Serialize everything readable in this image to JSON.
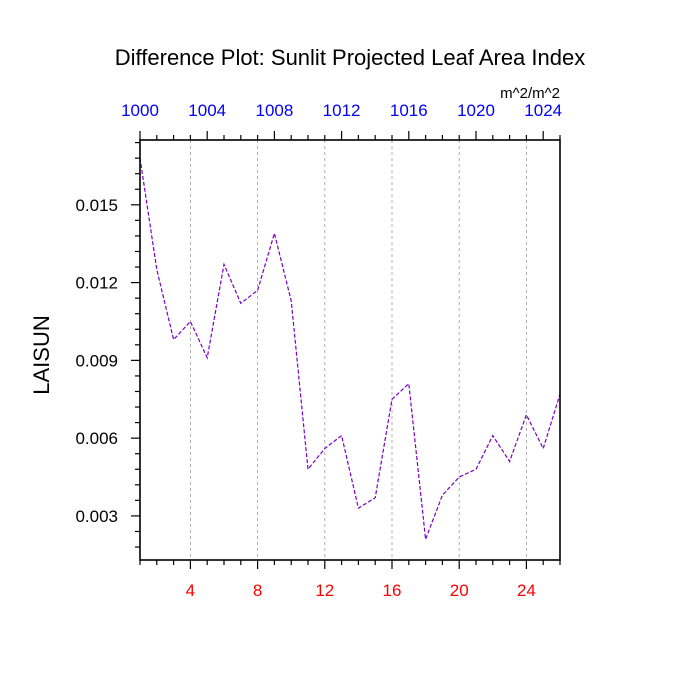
{
  "chart_data": {
    "type": "line",
    "title": "Difference Plot: Sunlit Projected Leaf Area Index",
    "ylabel": "LAISUN",
    "units": "m^2/m^2",
    "x": [
      1,
      2,
      3,
      4,
      5,
      6,
      7,
      8,
      9,
      10,
      11,
      12,
      13,
      14,
      15,
      16,
      17,
      18,
      19,
      20,
      21,
      22,
      23,
      24,
      25,
      26
    ],
    "series": [
      {
        "values": [
          0.0168,
          0.0125,
          0.0098,
          0.0105,
          0.0091,
          0.0127,
          0.0112,
          0.0117,
          0.0139,
          0.0113,
          0.0048,
          0.0056,
          0.0061,
          0.0033,
          0.0037,
          0.0075,
          0.0081,
          0.0021,
          0.0038,
          0.0045,
          0.0048,
          0.0061,
          0.0051,
          0.0069,
          0.0056,
          0.0077
        ]
      }
    ],
    "xlim": [
      1,
      26
    ],
    "ylim": [
      0.0013,
      0.0175
    ],
    "bottom_axis": {
      "ticks": [
        4,
        8,
        12,
        16,
        20,
        24
      ],
      "labels": [
        "4",
        "8",
        "12",
        "16",
        "20",
        "24"
      ],
      "color": "#ff0000"
    },
    "top_axis": {
      "ticks": [
        1,
        5,
        9,
        13,
        17,
        21,
        25
      ],
      "labels": [
        "1000",
        "1004",
        "1008",
        "1012",
        "1016",
        "1020",
        "1024"
      ],
      "color": "#0000ff"
    },
    "y_ticks": [
      0.003,
      0.006,
      0.009,
      0.012,
      0.015
    ],
    "y_tick_labels": [
      "0.003",
      "0.006",
      "0.009",
      "0.012",
      "0.015"
    ],
    "grid": "vertical dashed at major x ticks",
    "line_color": "#7a00c8"
  }
}
